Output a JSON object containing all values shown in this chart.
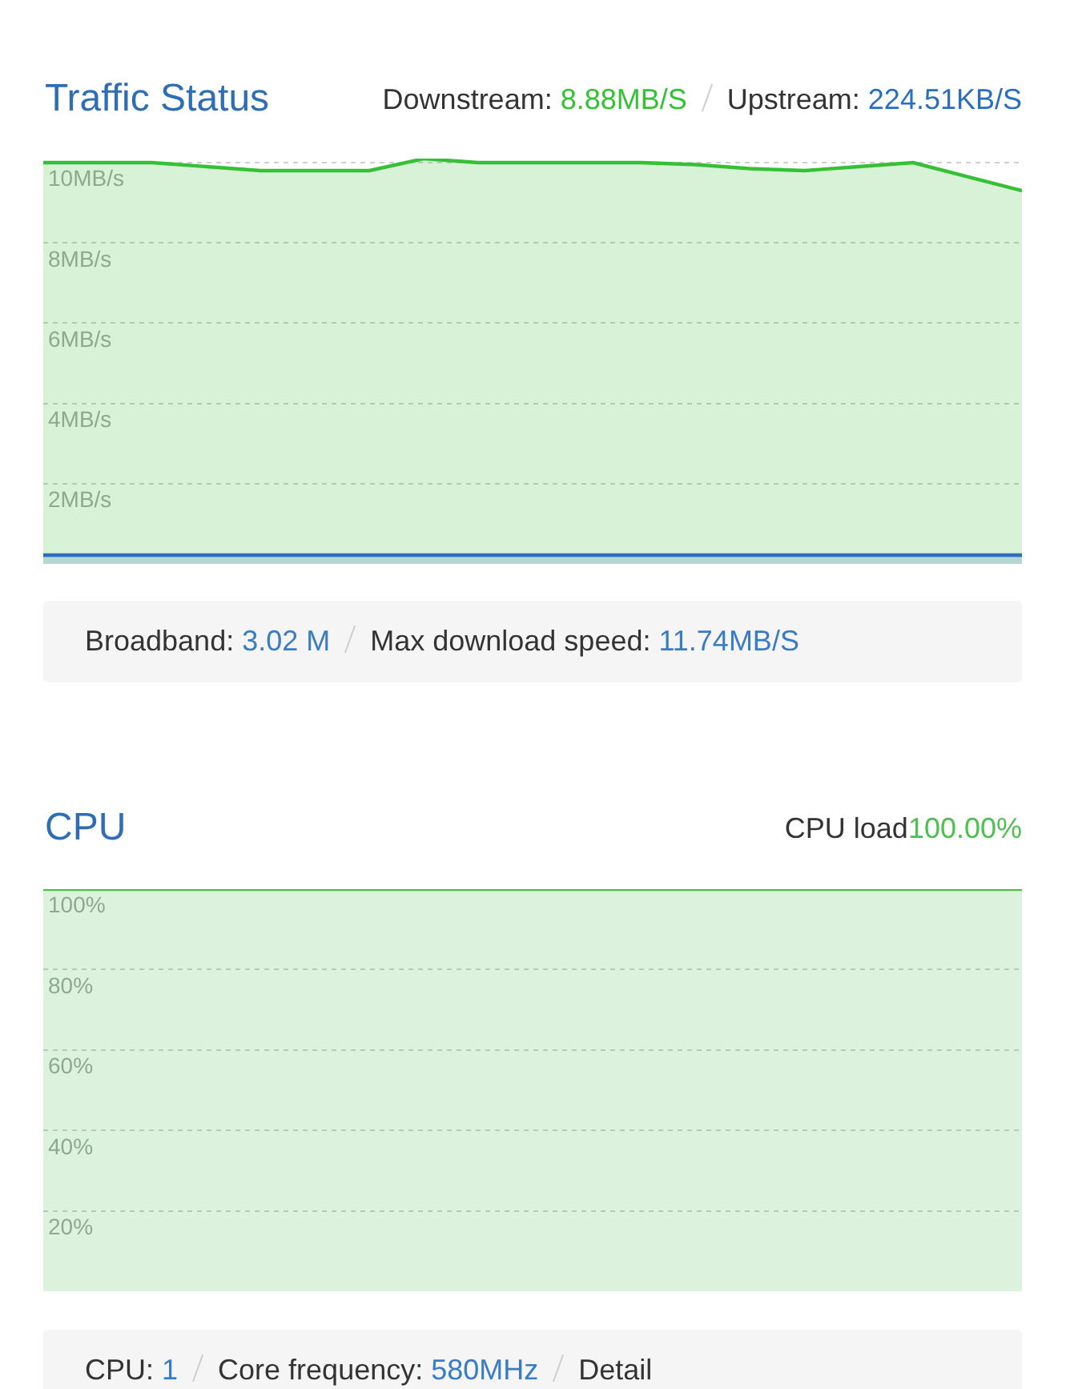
{
  "chart_data": [
    {
      "type": "area",
      "title": "Traffic Status",
      "annotations": [
        "Downstream: 8.88MB/S",
        "Upstream: 224.51KB/S",
        "Broadband: 3.02 M",
        "Max download speed: 11.74MB/S"
      ],
      "categories": [
        null,
        null,
        null,
        null,
        null,
        null,
        null,
        null,
        null,
        null,
        null,
        null,
        null,
        null,
        null,
        null,
        null,
        null,
        null
      ],
      "series": [
        {
          "color": "#36c036",
          "values": [
            10,
            10,
            10,
            9.9,
            9.8,
            9.8,
            9.8,
            10.1,
            10,
            10,
            10,
            10,
            9.95,
            9.85,
            9.8,
            9.9,
            10,
            9.65,
            9.3
          ]
        },
        {
          "color": "#2a6ebd",
          "values": [
            0.22,
            0.22,
            0.22,
            0.22,
            0.22,
            0.22,
            0.22,
            0.22,
            0.22,
            0.22,
            0.22,
            0.22,
            0.22,
            0.22,
            0.22,
            0.22,
            0.22,
            0.22,
            0.22
          ]
        }
      ],
      "ylim": [
        0,
        10.1
      ],
      "yticks": [
        {
          "value": 2,
          "label": "2MB/s"
        },
        {
          "value": 4,
          "label": "4MB/s"
        },
        {
          "value": 6,
          "label": "6MB/s"
        },
        {
          "value": 8,
          "label": "8MB/s"
        },
        {
          "value": 10,
          "label": "10MB/s"
        }
      ],
      "grid": "y",
      "tick_labels": "y"
    },
    {
      "type": "area",
      "title": "CPU",
      "annotations": [
        "CPU load100.00%",
        "CPU: 1",
        "Core frequency: 580MHz",
        "Detail"
      ],
      "categories": [
        null,
        null,
        null,
        null,
        null,
        null,
        null,
        null,
        null,
        null,
        null,
        null,
        null,
        null,
        null,
        null,
        null,
        null,
        null
      ],
      "series": [
        {
          "color": "#4fbf4f",
          "values": [
            100,
            100,
            100,
            100,
            100,
            100,
            100,
            100,
            100,
            100,
            100,
            100,
            100,
            100,
            100,
            100,
            100,
            100,
            100
          ]
        }
      ],
      "ylim": [
        0,
        100
      ],
      "yticks": [
        {
          "value": 20,
          "label": "20%"
        },
        {
          "value": 40,
          "label": "40%"
        },
        {
          "value": 60,
          "label": "60%"
        },
        {
          "value": 80,
          "label": "80%"
        },
        {
          "value": 100,
          "label": "100%"
        }
      ],
      "grid": "y",
      "tick_labels": "y"
    }
  ]
}
